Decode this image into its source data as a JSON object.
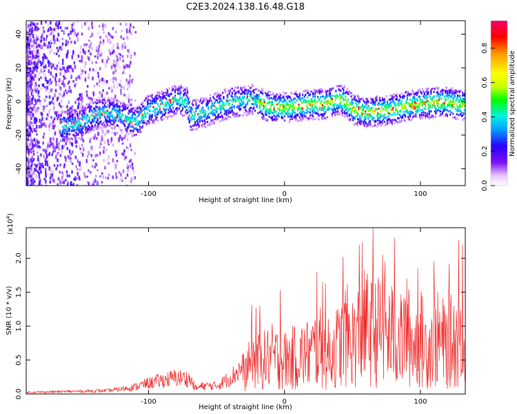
{
  "figure": {
    "title": "C2E3.2024.138.16.48.G18"
  },
  "colors": {
    "snr_line": "#ee2222",
    "background": "#ffffff",
    "axis": "#000000",
    "colormap": [
      "#ffffff",
      "#e9c6ff",
      "#7a12f0",
      "#2a00ff",
      "#00a0ff",
      "#00f0e0",
      "#00ff00",
      "#c8ff00",
      "#ffff00",
      "#ff9900",
      "#ff0000",
      "#ee0066"
    ]
  },
  "chart_data": [
    {
      "type": "heatmap",
      "title": "",
      "xlabel": "Height of straight line (km)",
      "ylabel": "Frequency (Hz)",
      "xlim": [
        -190,
        133
      ],
      "ylim": [
        -50,
        48
      ],
      "xticks": [
        -100,
        0,
        100
      ],
      "yticks": [
        -40,
        -20,
        0,
        20,
        40
      ],
      "tick_labels_x": [
        "-100",
        "0",
        "100"
      ],
      "tick_labels_y": [
        "-40",
        "-20",
        "0",
        "20",
        "40"
      ],
      "colorbar": {
        "label": "Normalized spectral amplitude",
        "range": [
          0,
          0.96
        ],
        "ticks": [
          "0.0",
          "0.2",
          "0.4",
          "0.6",
          "0.8"
        ]
      },
      "ridge_x": [
        -160,
        -150,
        -140,
        -130,
        -120,
        -110,
        -100,
        -90,
        -80,
        -72,
        -70,
        -60,
        -50,
        -40,
        -30,
        -25,
        -20,
        -10,
        0,
        10,
        20,
        30,
        40,
        45,
        50,
        60,
        70,
        80,
        90,
        100,
        110,
        120,
        133
      ],
      "ridge_freq": [
        -14,
        -12,
        -7,
        -6,
        -8,
        -12,
        -4,
        -2,
        2,
        0,
        -8,
        -6,
        -3,
        0,
        1,
        2,
        0,
        -3,
        -3,
        -2,
        -1,
        -1,
        2,
        0,
        -4,
        -6,
        -5,
        -4,
        -2,
        -1,
        0,
        0,
        -2
      ],
      "grid": false
    },
    {
      "type": "line",
      "title": "",
      "xlabel": "Height of straight line (km)",
      "ylabel": "SNR (10 * v/v)",
      "y_multiplier": "(x10",
      "y_multiplier_exp": "4",
      "xlim": [
        -190,
        133
      ],
      "ylim": [
        0,
        2.45
      ],
      "xticks": [
        -100,
        0,
        100
      ],
      "yticks": [
        0,
        0.5,
        1.0,
        1.5,
        2.0
      ],
      "tick_labels_x": [
        "-100",
        "0",
        "100"
      ],
      "tick_labels_y": [
        "0.0",
        "0.5",
        "1.0",
        "1.5",
        "2.0"
      ],
      "series": [
        {
          "x": [
            -190,
            -170,
            -150,
            -130,
            -120,
            -110,
            -100,
            -90,
            -80,
            -70,
            -65,
            -60,
            -50,
            -40,
            -35,
            -30,
            -26,
            -24,
            -20,
            -15,
            -10,
            -5,
            0,
            10,
            20,
            25,
            30,
            40,
            45,
            50,
            55,
            60,
            65,
            70,
            75,
            80,
            85,
            90,
            95,
            100,
            105,
            110,
            115,
            120,
            125,
            130,
            133
          ],
          "env": [
            0.03,
            0.04,
            0.05,
            0.06,
            0.09,
            0.13,
            0.2,
            0.25,
            0.3,
            0.28,
            0.1,
            0.15,
            0.15,
            0.3,
            0.4,
            0.5,
            0.75,
            0.9,
            0.85,
            0.9,
            1.0,
            0.95,
            0.9,
            1.0,
            1.1,
            1.3,
            1.0,
            1.3,
            1.6,
            1.4,
            1.6,
            1.8,
            1.6,
            1.7,
            1.5,
            1.6,
            1.4,
            1.6,
            1.3,
            1.5,
            1.2,
            1.5,
            1.4,
            1.3,
            1.5,
            1.3,
            1.2
          ],
          "peaks": [
            [
              -24,
              1.31
            ],
            [
              -21,
              1.27
            ],
            [
              -18,
              1.3
            ],
            [
              -3,
              1.53
            ],
            [
              24,
              1.8
            ],
            [
              28,
              1.65
            ],
            [
              30,
              1.63
            ],
            [
              43,
              2.02
            ],
            [
              55,
              2.2
            ],
            [
              57,
              2.24
            ],
            [
              65,
              2.45
            ],
            [
              72,
              2.05
            ],
            [
              74,
              1.95
            ],
            [
              81,
              2.3
            ],
            [
              90,
              1.7
            ],
            [
              98,
              1.85
            ],
            [
              110,
              1.95
            ],
            [
              121,
              1.92
            ],
            [
              128,
              2.27
            ],
            [
              131,
              2.2
            ]
          ]
        }
      ],
      "grid": false
    }
  ]
}
